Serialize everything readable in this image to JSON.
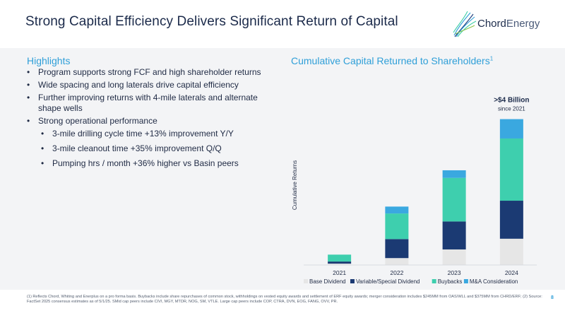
{
  "slide": {
    "title": "Strong Capital Efficiency Delivers Significant Return of Capital",
    "page_number": "8"
  },
  "logo": {
    "brand_a": "Chord",
    "brand_b": "Energy",
    "colors": [
      "#1b3a7a",
      "#2f9fd8",
      "#3fcfa6",
      "#8bc34a"
    ]
  },
  "highlights": {
    "title": "Highlights",
    "items": [
      {
        "text": "Program supports strong FCF and high shareholder returns",
        "level": 1
      },
      {
        "text": "Wide spacing and long laterals drive capital efficiency",
        "level": 1
      },
      {
        "text": "Further improving returns with 4-mile laterals and alternate shape wells",
        "level": 1
      },
      {
        "text": "Strong operational performance",
        "level": 1
      },
      {
        "text": "3-mile drilling cycle time +13% improvement Y/Y",
        "level": 2
      },
      {
        "text": "3-mile cleanout time +35% improvement Q/Q",
        "level": 2
      },
      {
        "text": "Pumping hrs / month +36% higher vs Basin peers",
        "level": 2
      }
    ]
  },
  "chart_header": {
    "title": "Cumulative Capital Returned to Shareholders",
    "superscript": "1"
  },
  "chart_data": {
    "type": "bar",
    "stacked": true,
    "title": "Cumulative Capital Returned to Shareholders",
    "ylabel": "Cumulative Returns",
    "xlabel": "",
    "categories": [
      "2021",
      "2022",
      "2023",
      "2024"
    ],
    "ylim": [
      0,
      4.6
    ],
    "series": [
      {
        "name": "Base Dividend",
        "color": "#e6e6e6",
        "values": [
          0.04,
          0.2,
          0.45,
          0.76
        ]
      },
      {
        "name": "Variable/Special Dividend",
        "color": "#1b3a73",
        "values": [
          0.06,
          0.55,
          0.81,
          1.1
        ]
      },
      {
        "name": "Buybacks",
        "color": "#3ecfae",
        "values": [
          0.2,
          0.74,
          1.26,
          1.8
        ]
      },
      {
        "name": "M&A Consideration",
        "color": "#3aa8e0",
        "values": [
          0,
          0.2,
          0.22,
          0.56
        ]
      }
    ],
    "annotation": {
      "category": "2024",
      "line1": ">$4 Billion",
      "line2": "since 2021"
    },
    "legend_position": "bottom",
    "grid": false
  },
  "footnote": "(1) Reflects Chord, Whiting and Enerplus on a pro forma basis. Buybacks include share repurchases of common stock, withholdings on vested equity awards and settlement of ERF equity awards; merger consideration includes $245MM from OAS/WLL and $375MM from CHRD/ERF; (2) Source: FactSet 2025 consensus estimates as of 5/1/25. SMid cap peers include CIVI, MGY, MTDR, NOG, SM, VTLE. Large cap peers include COP, CTRA, DVN, EOG, FANG, OVV, PR."
}
